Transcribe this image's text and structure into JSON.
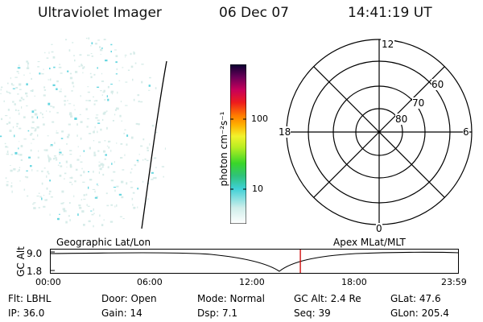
{
  "header": {
    "title": "Ultraviolet Imager",
    "date": "06 Dec 07",
    "time": "14:41:19 UT"
  },
  "colorbar": {
    "unit_label": "photon cm⁻²s⁻¹",
    "ticks": [
      "100",
      "10"
    ]
  },
  "polar": {
    "hour_labels": {
      "top": "12",
      "left": "18",
      "right": "6",
      "bottom": "0"
    },
    "lat_labels": [
      "60",
      "70",
      "80"
    ]
  },
  "track": {
    "left_caption": "Geographic Lat/Lon",
    "right_caption": "Apex MLat/MLT",
    "axis_title": "GC Alt",
    "y_ticks": [
      "9.0",
      "1.8"
    ],
    "x_ticks": [
      "00:00",
      "06:00",
      "12:00",
      "18:00",
      "23:59"
    ],
    "marker_time_fraction": 0.6124
  },
  "status": {
    "row1": {
      "flt": "Flt: LBHL",
      "door": "Door: Open",
      "mode": "Mode:  Normal",
      "gcalt": "GC Alt: 2.4 Re",
      "glat": "GLat:  47.6"
    },
    "row2": {
      "ip": "IP: 36.0",
      "gain": "Gain: 14",
      "dsp": "Dsp:     7.1",
      "seq": "Seq: 39",
      "glon": "GLon: 205.4"
    }
  },
  "colors": {
    "grid": "#000000",
    "marker": "#cc0000",
    "speckle_light": "#d7ece9",
    "speckle_cyan": "#66d6e0"
  }
}
